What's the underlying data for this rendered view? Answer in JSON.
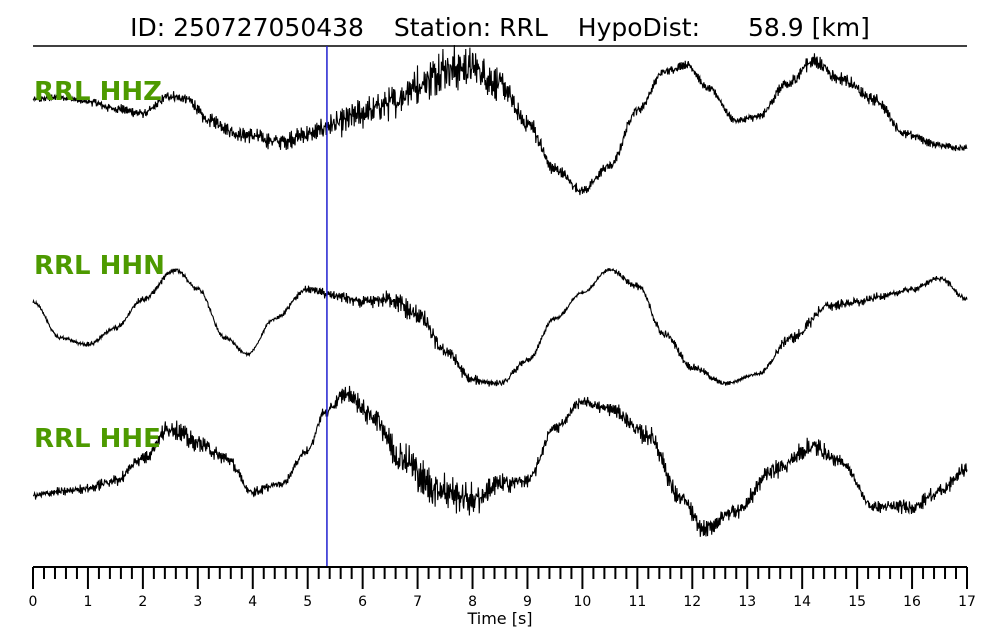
{
  "title": {
    "id_text": "ID: 250727050438",
    "station_text": "Station: RRL",
    "hypodist_label": "HypoDist:",
    "hypodist_value": "58.9 [km]"
  },
  "chart_data": {
    "type": "line",
    "xlabel": "Time [s]",
    "ylabel": "",
    "xlim": [
      0,
      17
    ],
    "xticks": [
      "0",
      "1",
      "2",
      "3",
      "4",
      "5",
      "6",
      "7",
      "8",
      "9",
      "10",
      "11",
      "12",
      "13",
      "14",
      "15",
      "16",
      "17"
    ],
    "minor_tick_step": 0.2,
    "grid": false,
    "pick_time": 5.35,
    "pick_color": "#1f1fd0",
    "label_color": "#4d9a00",
    "trace_color": "#000000",
    "series": [
      {
        "name": "RRL HHZ",
        "points": [
          [
            0,
            0.55
          ],
          [
            0.5,
            0.58
          ],
          [
            1,
            0.52
          ],
          [
            1.5,
            0.42
          ],
          [
            2,
            0.35
          ],
          [
            2.5,
            0.6
          ],
          [
            2.8,
            0.55
          ],
          [
            3.2,
            0.25
          ],
          [
            3.8,
            0.05
          ],
          [
            4.5,
            -0.05
          ],
          [
            5,
            0.05
          ],
          [
            5.5,
            0.2
          ],
          [
            6,
            0.35
          ],
          [
            6.5,
            0.5
          ],
          [
            7,
            0.75
          ],
          [
            7.5,
            1.0
          ],
          [
            8,
            1.0
          ],
          [
            8.5,
            0.75
          ],
          [
            9,
            0.2
          ],
          [
            9.5,
            -0.45
          ],
          [
            10,
            -0.75
          ],
          [
            10.5,
            -0.4
          ],
          [
            11,
            0.4
          ],
          [
            11.5,
            0.95
          ],
          [
            11.9,
            1.05
          ],
          [
            12.3,
            0.7
          ],
          [
            12.8,
            0.25
          ],
          [
            13.2,
            0.3
          ],
          [
            13.7,
            0.75
          ],
          [
            14.2,
            1.1
          ],
          [
            14.7,
            0.85
          ],
          [
            15.3,
            0.55
          ],
          [
            15.9,
            0.05
          ],
          [
            16.5,
            -0.1
          ],
          [
            17,
            -0.15
          ]
        ],
        "noise": [
          [
            0,
            0.05
          ],
          [
            2,
            0.08
          ],
          [
            5,
            0.15
          ],
          [
            6,
            0.25
          ],
          [
            7.6,
            0.35
          ],
          [
            8.3,
            0.3
          ],
          [
            9,
            0.15
          ],
          [
            10,
            0.08
          ],
          [
            13,
            0.06
          ],
          [
            14.2,
            0.12
          ],
          [
            15,
            0.1
          ],
          [
            16,
            0.07
          ],
          [
            17,
            0.06
          ]
        ]
      },
      {
        "name": "RRL HHN",
        "points": [
          [
            0,
            0.35
          ],
          [
            0.5,
            -0.2
          ],
          [
            1,
            -0.3
          ],
          [
            1.5,
            -0.05
          ],
          [
            2,
            0.4
          ],
          [
            2.6,
            0.85
          ],
          [
            3,
            0.55
          ],
          [
            3.5,
            -0.2
          ],
          [
            3.9,
            -0.45
          ],
          [
            4.4,
            0.1
          ],
          [
            5,
            0.55
          ],
          [
            5.5,
            0.45
          ],
          [
            6,
            0.35
          ],
          [
            6.5,
            0.4
          ],
          [
            7,
            0.15
          ],
          [
            7.5,
            -0.4
          ],
          [
            8,
            -0.85
          ],
          [
            8.5,
            -0.9
          ],
          [
            9,
            -0.55
          ],
          [
            9.5,
            0.1
          ],
          [
            10,
            0.5
          ],
          [
            10.5,
            0.85
          ],
          [
            11,
            0.6
          ],
          [
            11.5,
            -0.15
          ],
          [
            12,
            -0.65
          ],
          [
            12.6,
            -0.9
          ],
          [
            13.2,
            -0.75
          ],
          [
            13.8,
            -0.2
          ],
          [
            14.5,
            0.3
          ],
          [
            15,
            0.35
          ],
          [
            15.5,
            0.45
          ],
          [
            16,
            0.55
          ],
          [
            16.5,
            0.72
          ],
          [
            17,
            0.4
          ]
        ],
        "noise": [
          [
            0,
            0.03
          ],
          [
            2,
            0.05
          ],
          [
            4,
            0.03
          ],
          [
            6,
            0.1
          ],
          [
            7,
            0.2
          ],
          [
            7.5,
            0.12
          ],
          [
            8.5,
            0.06
          ],
          [
            10,
            0.03
          ],
          [
            11.5,
            0.08
          ],
          [
            12,
            0.06
          ],
          [
            13,
            0.03
          ],
          [
            14,
            0.1
          ],
          [
            15,
            0.08
          ],
          [
            16,
            0.05
          ],
          [
            17,
            0.05
          ]
        ]
      },
      {
        "name": "RRL HHE",
        "points": [
          [
            0,
            -0.3
          ],
          [
            0.5,
            -0.25
          ],
          [
            1,
            -0.2
          ],
          [
            1.5,
            -0.1
          ],
          [
            2,
            0.2
          ],
          [
            2.5,
            0.6
          ],
          [
            3,
            0.4
          ],
          [
            3.5,
            0.2
          ],
          [
            4,
            -0.25
          ],
          [
            4.5,
            -0.15
          ],
          [
            5,
            0.3
          ],
          [
            5.3,
            0.8
          ],
          [
            5.7,
            1.05
          ],
          [
            6.2,
            0.75
          ],
          [
            6.7,
            0.2
          ],
          [
            7.3,
            -0.2
          ],
          [
            8,
            -0.35
          ],
          [
            8.5,
            -0.15
          ],
          [
            9,
            -0.1
          ],
          [
            9.5,
            0.6
          ],
          [
            10,
            0.95
          ],
          [
            10.5,
            0.85
          ],
          [
            11.2,
            0.5
          ],
          [
            11.8,
            -0.35
          ],
          [
            12.2,
            -0.75
          ],
          [
            12.8,
            -0.5
          ],
          [
            13.5,
            0.05
          ],
          [
            14.2,
            0.35
          ],
          [
            14.7,
            0.15
          ],
          [
            15.3,
            -0.45
          ],
          [
            16,
            -0.45
          ],
          [
            16.5,
            -0.25
          ],
          [
            17,
            0.05
          ]
        ],
        "noise": [
          [
            0,
            0.06
          ],
          [
            2,
            0.1
          ],
          [
            2.5,
            0.15
          ],
          [
            4,
            0.08
          ],
          [
            5,
            0.06
          ],
          [
            6,
            0.15
          ],
          [
            7,
            0.3
          ],
          [
            8,
            0.25
          ],
          [
            9,
            0.1
          ],
          [
            10,
            0.08
          ],
          [
            11.5,
            0.15
          ],
          [
            12.5,
            0.12
          ],
          [
            14,
            0.15
          ],
          [
            15,
            0.08
          ],
          [
            16.5,
            0.12
          ],
          [
            17,
            0.1
          ]
        ]
      }
    ]
  }
}
